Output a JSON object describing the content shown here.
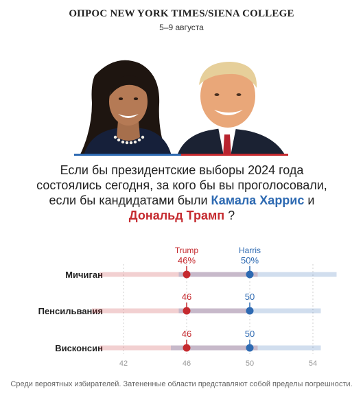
{
  "header": {
    "title": "ОПРОС NEW YORK TIMES/SIENA COLLEGE",
    "dates": "5–9 августа"
  },
  "photos": {
    "left": "Камала Харрис",
    "right": "Дональд Трамп"
  },
  "question": {
    "text": "Если бы президентские выборы 2024 года состоялись сегодня, за кого бы вы проголосовали, если бы кандидатами были",
    "candidate1": "Камала Харрис",
    "joiner": "и",
    "candidate2": "Дональд Трамп",
    "end": "?"
  },
  "colors": {
    "harris": "#2e6ab2",
    "trump": "#c52a2f"
  },
  "chart_data": {
    "type": "scatter",
    "series": [
      {
        "name": "Trump",
        "first_label": "Trump",
        "values": [
          46,
          46,
          46
        ],
        "value_labels": [
          "46%",
          "46",
          "46"
        ]
      },
      {
        "name": "Harris",
        "first_label": "Harris",
        "values": [
          50,
          50,
          50
        ],
        "value_labels": [
          "50%",
          "50",
          "50"
        ]
      }
    ],
    "categories": [
      "Мичиган",
      "Пенсильвания",
      "Висконсин"
    ],
    "margin_of_error": {
      "Trump": [
        [
          40.5,
          50.5
        ],
        [
          40,
          50
        ],
        [
          40.5,
          50.5
        ]
      ],
      "Harris": [
        [
          45.5,
          55.5
        ],
        [
          45.5,
          54.5
        ],
        [
          45,
          54.5
        ]
      ]
    },
    "xlim": [
      42,
      54
    ],
    "xticks": [
      "42",
      "46",
      "50",
      "54"
    ],
    "grid": true
  },
  "footnote": "Среди вероятных избирателей. Затененные области представляют собой пределы погрешности."
}
